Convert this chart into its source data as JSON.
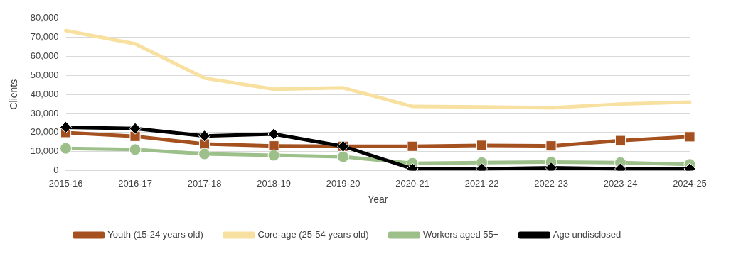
{
  "chart_data": {
    "type": "line",
    "xlabel": "Year",
    "ylabel": "Clients",
    "categories": [
      "2015-16",
      "2016-17",
      "2017-18",
      "2018-19",
      "2019-20",
      "2020-21",
      "2021-22",
      "2022-23",
      "2023-24",
      "2024-25"
    ],
    "series": [
      {
        "name": "Youth (15-24 years old)",
        "color": "#a5501f",
        "marker": "square",
        "values": [
          20000,
          18000,
          14000,
          13000,
          12800,
          12800,
          13300,
          13000,
          15800,
          17800
        ]
      },
      {
        "name": "Core-age (25-54 years old)",
        "color": "#f8e0a0",
        "marker": "none",
        "values": [
          73500,
          66600,
          48600,
          42800,
          43500,
          33700,
          33500,
          33000,
          35000,
          36000
        ]
      },
      {
        "name": "Workers aged 55+",
        "color": "#9dc08b",
        "marker": "circle",
        "values": [
          11700,
          11100,
          8800,
          8000,
          7300,
          3900,
          4200,
          4500,
          4200,
          3300
        ]
      },
      {
        "name": "Age undisclosed",
        "color": "#000000",
        "marker": "diamond",
        "values": [
          22800,
          22100,
          18200,
          19200,
          12800,
          1000,
          1000,
          1500,
          1000,
          1000
        ]
      }
    ],
    "ylim": [
      0,
      80000
    ],
    "yticks": [
      {
        "value": 0,
        "label": "0"
      },
      {
        "value": 10000,
        "label": "10,000"
      },
      {
        "value": 20000,
        "label": "20,000"
      },
      {
        "value": 30000,
        "label": "30,000"
      },
      {
        "value": 40000,
        "label": "40,000"
      },
      {
        "value": 50000,
        "label": "50,000"
      },
      {
        "value": 60000,
        "label": "60,000"
      },
      {
        "value": 70000,
        "label": "70,000"
      },
      {
        "value": 80000,
        "label": "80,000"
      }
    ],
    "grid": "y",
    "legend": "bottom"
  }
}
